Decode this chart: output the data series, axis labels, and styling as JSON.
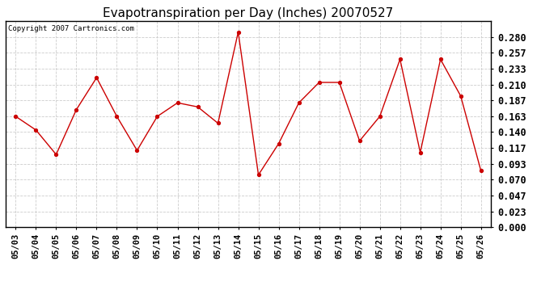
{
  "title": "Evapotranspiration per Day (Inches) 20070527",
  "copyright": "Copyright 2007 Cartronics.com",
  "dates": [
    "05/03",
    "05/04",
    "05/05",
    "05/06",
    "05/07",
    "05/08",
    "05/09",
    "05/10",
    "05/11",
    "05/12",
    "05/13",
    "05/14",
    "05/15",
    "05/16",
    "05/17",
    "05/18",
    "05/19",
    "05/20",
    "05/21",
    "05/22",
    "05/23",
    "05/24",
    "05/25",
    "05/26"
  ],
  "values": [
    0.163,
    0.143,
    0.107,
    0.173,
    0.22,
    0.163,
    0.113,
    0.163,
    0.183,
    0.177,
    0.153,
    0.287,
    0.077,
    0.123,
    0.183,
    0.213,
    0.213,
    0.127,
    0.163,
    0.247,
    0.11,
    0.247,
    0.193,
    0.083
  ],
  "line_color": "#cc0000",
  "marker": "o",
  "marker_size": 3,
  "bg_color": "#ffffff",
  "plot_bg_color": "#ffffff",
  "grid_color": "#cccccc",
  "ylim": [
    0.0,
    0.303
  ],
  "yticks": [
    0.0,
    0.023,
    0.047,
    0.07,
    0.093,
    0.117,
    0.14,
    0.163,
    0.187,
    0.21,
    0.233,
    0.257,
    0.28
  ],
  "title_fontsize": 11,
  "copyright_fontsize": 6.5,
  "tick_fontsize": 7.5,
  "ytick_fontsize": 8.5
}
